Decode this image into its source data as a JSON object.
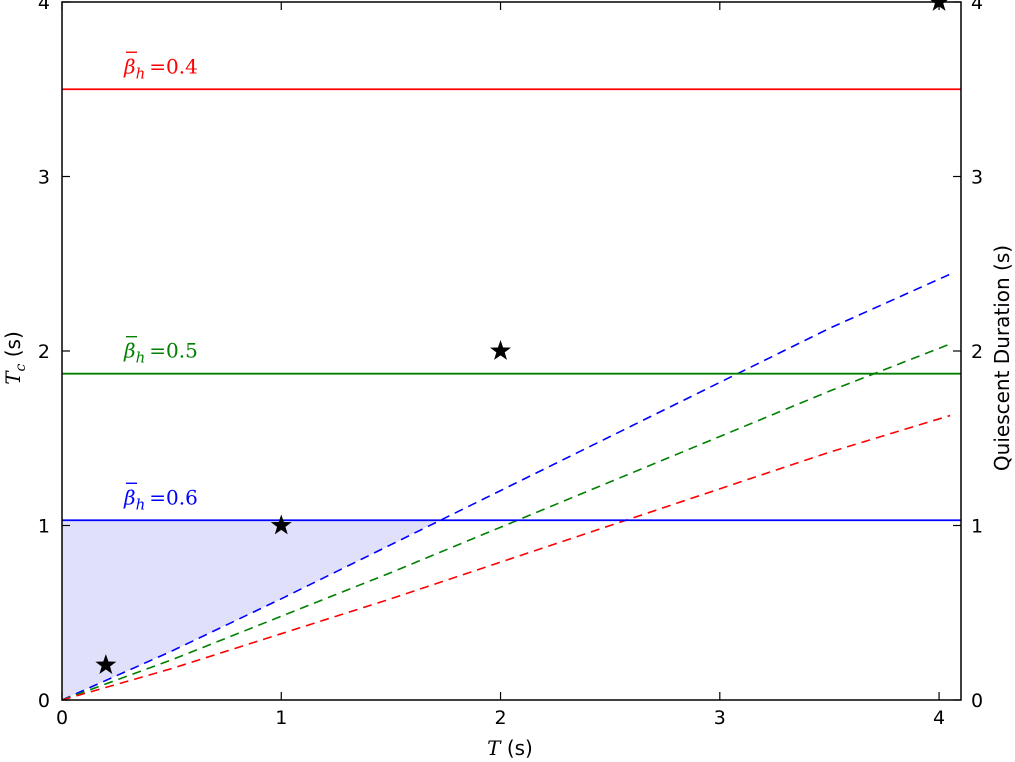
{
  "chart_data": {
    "type": "line",
    "xlabel": {
      "var": "T",
      "unit": "(s)"
    },
    "ylabel": {
      "var": "T",
      "sub": "c",
      "unit": "(s)"
    },
    "y2label": "Quiescent Duration (s)",
    "xlim": [
      0,
      4.1
    ],
    "ylim": [
      0,
      4.0
    ],
    "xticks": [
      0,
      1,
      2,
      3,
      4
    ],
    "yticks": [
      0,
      1,
      2,
      3,
      4
    ],
    "y2ticks": [
      0,
      1,
      2,
      3,
      4
    ],
    "grid": false,
    "legend": "none",
    "colors": {
      "blue": "#0000ff",
      "green": "#008000",
      "red": "#ff0000",
      "fill": "#e0e0fa",
      "star": "#000000"
    },
    "horizontal_lines": [
      {
        "beta": "0.4",
        "y": 3.5,
        "color": "#ff0000"
      },
      {
        "beta": "0.5",
        "y": 1.87,
        "color": "#008000"
      },
      {
        "beta": "0.6",
        "y": 1.03,
        "color": "#0000ff"
      }
    ],
    "annotation_prefix": "=",
    "dashed_curves": [
      {
        "color": "#0000ff",
        "x": [
          0,
          0.5,
          1,
          1.5,
          2,
          2.5,
          3,
          3.5,
          4.05
        ],
        "y": [
          0,
          0.28,
          0.58,
          0.89,
          1.2,
          1.51,
          1.82,
          2.13,
          2.44
        ]
      },
      {
        "color": "#008000",
        "x": [
          0,
          0.5,
          1,
          1.5,
          2,
          2.5,
          3,
          3.5,
          4.05
        ],
        "y": [
          0,
          0.23,
          0.48,
          0.73,
          0.99,
          1.25,
          1.51,
          1.77,
          2.04
        ]
      },
      {
        "color": "#ff0000",
        "x": [
          0,
          0.5,
          1,
          1.5,
          2,
          2.5,
          3,
          3.5,
          4.05
        ],
        "y": [
          0,
          0.18,
          0.38,
          0.58,
          0.79,
          1.0,
          1.21,
          1.42,
          1.63
        ]
      }
    ],
    "shaded_region": {
      "color": "#e0e0fa",
      "top_y": 1.03,
      "x": [
        0,
        0.5,
        1,
        1.5,
        1.72
      ],
      "lower_y": [
        0,
        0.28,
        0.58,
        0.89,
        1.03
      ]
    },
    "stars": [
      {
        "x": 0.2,
        "y": 0.2
      },
      {
        "x": 1,
        "y": 1
      },
      {
        "x": 2,
        "y": 2
      },
      {
        "x": 4,
        "y": 4
      }
    ]
  }
}
